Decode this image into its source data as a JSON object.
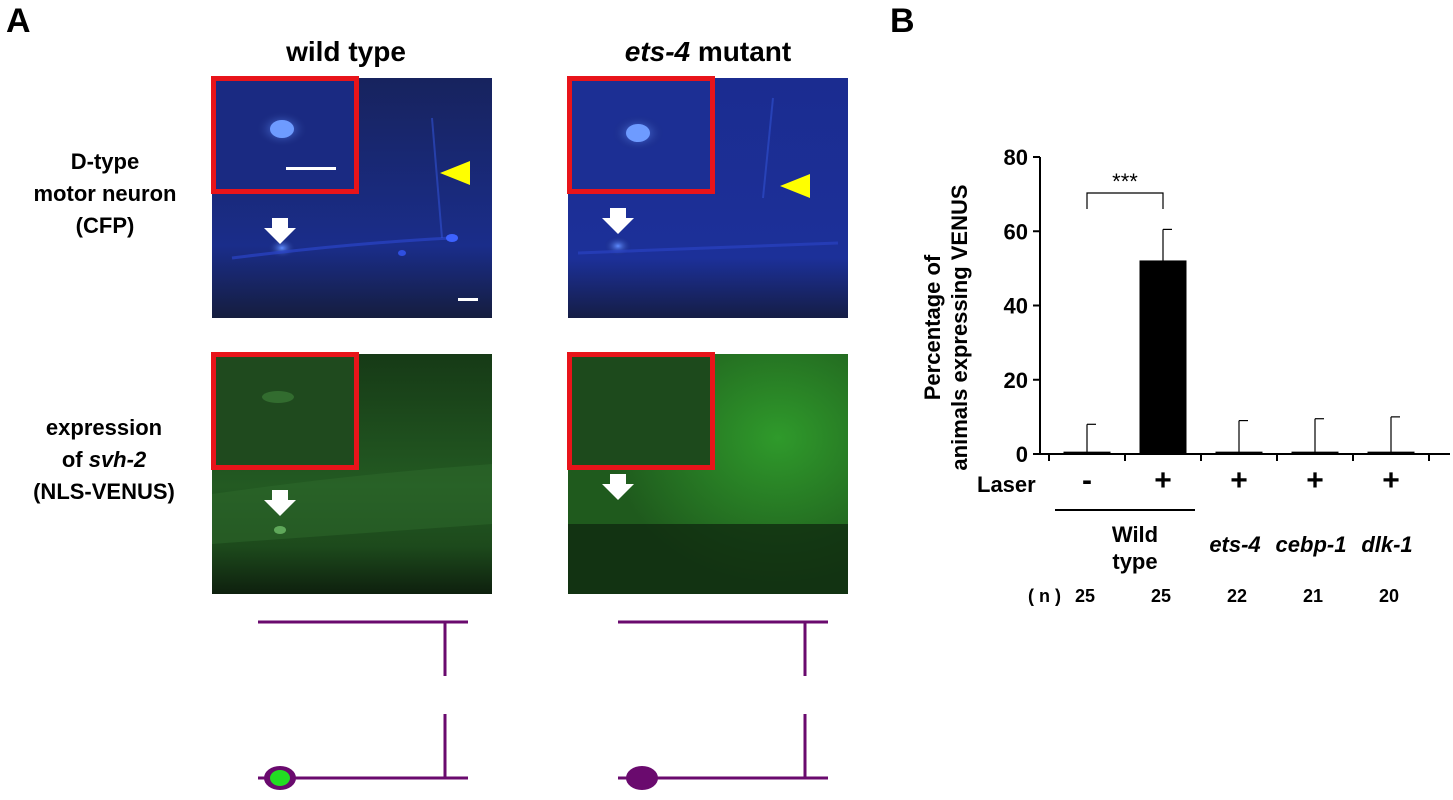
{
  "panel_a": {
    "letter": "A",
    "columns": [
      {
        "title_italic": "",
        "title_plain": "wild type"
      },
      {
        "title_italic": "ets-4",
        "title_plain": " mutant"
      }
    ],
    "rows": [
      {
        "line1": "D-type",
        "line2": "motor neuron",
        "line3": "(CFP)"
      },
      {
        "line1": "expression",
        "line2_plain": "of ",
        "line2_italic": "svh-2",
        "line3": "(NLS-VENUS)"
      }
    ],
    "colors": {
      "cfp_background": "#14205a",
      "venus_background": "#1b4a1c",
      "inset_border": "#e8141a",
      "arrowhead": "#ffff00",
      "arrow": "#ffffff",
      "neuron_line": "#6a0a6e",
      "venus_nucleus": "#22dd22"
    }
  },
  "panel_b": {
    "letter": "B",
    "chart_data": {
      "type": "bar",
      "ylabel_line1": "Percentage of",
      "ylabel_line2": "animals expressing VENUS",
      "ylim": [
        0,
        80
      ],
      "yticks": [
        "0",
        "20",
        "40",
        "60",
        "80"
      ],
      "values": [
        0.5,
        52,
        0.5,
        0.5,
        0.5
      ],
      "errors": [
        7.5,
        8.5,
        8.5,
        9,
        9.5
      ],
      "laser_label": "Laser",
      "laser": [
        "-",
        "+",
        "+",
        "+",
        "+"
      ],
      "genotypes": [
        "",
        "",
        "ets-4",
        "cebp-1",
        "dlk-1"
      ],
      "wild_type_line1": "Wild",
      "wild_type_line2": "type",
      "n_label": "( n )",
      "n": [
        "25",
        "25",
        "22",
        "21",
        "20"
      ],
      "significance": "***",
      "bar_color": "#000000"
    }
  }
}
